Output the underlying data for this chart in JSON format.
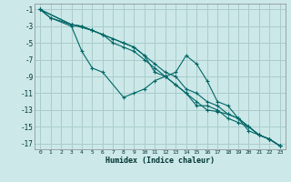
{
  "xlabel": "Humidex (Indice chaleur)",
  "xlim": [
    -0.5,
    23.5
  ],
  "ylim": [
    -17.7,
    -0.3
  ],
  "yticks": [
    -1,
    -3,
    -5,
    -7,
    -9,
    -11,
    -13,
    -15,
    -17
  ],
  "xticks": [
    0,
    1,
    2,
    3,
    4,
    5,
    6,
    7,
    8,
    9,
    10,
    11,
    12,
    13,
    14,
    15,
    16,
    17,
    18,
    19,
    20,
    21,
    22,
    23
  ],
  "bg_color": "#cce8e8",
  "grid_color": "#aacccc",
  "line_color": "#006666",
  "series": [
    {
      "x": [
        0,
        1,
        3,
        4,
        5,
        6,
        8,
        9,
        10,
        11,
        12,
        13,
        14,
        15,
        16,
        17,
        18,
        19,
        20,
        21,
        22,
        23
      ],
      "y": [
        -1,
        -2,
        -3,
        -6,
        -8,
        -8.5,
        -11.5,
        -11,
        -10.5,
        -9.5,
        -9,
        -8.5,
        -6.5,
        -7.5,
        -9.5,
        -12,
        -12.5,
        -14,
        -15.5,
        -16,
        -16.5,
        -17.3
      ]
    },
    {
      "x": [
        0,
        1,
        3,
        4,
        5,
        6,
        7,
        8,
        9,
        10,
        11,
        12,
        13,
        14,
        15,
        16,
        17,
        18,
        19,
        20,
        21,
        22,
        23
      ],
      "y": [
        -1,
        -2,
        -2.8,
        -3,
        -3.5,
        -4,
        -5,
        -5.5,
        -6,
        -7,
        -8,
        -9,
        -10,
        -11,
        -12,
        -13,
        -13.2,
        -13.5,
        -14,
        -15,
        -16,
        -16.5,
        -17.3
      ]
    },
    {
      "x": [
        0,
        3,
        4,
        5,
        6,
        8,
        9,
        10,
        11,
        12,
        13,
        14,
        15,
        16,
        17,
        18,
        19,
        20,
        21,
        22,
        23
      ],
      "y": [
        -1,
        -2.8,
        -3,
        -3.5,
        -4,
        -5,
        -5.5,
        -6.5,
        -8.5,
        -9,
        -10,
        -11,
        -12.5,
        -12.5,
        -13,
        -14,
        -14.5,
        -15,
        -16,
        -16.5,
        -17.3
      ]
    },
    {
      "x": [
        0,
        3,
        5,
        6,
        7,
        8,
        9,
        10,
        11,
        12,
        13,
        14,
        15,
        16,
        17,
        18,
        19,
        20,
        21,
        22,
        23
      ],
      "y": [
        -1,
        -2.8,
        -3.5,
        -4,
        -4.5,
        -5,
        -5.5,
        -6.5,
        -7.5,
        -8.5,
        -9,
        -10.5,
        -11,
        -12,
        -12.5,
        -13.5,
        -14,
        -15,
        -16,
        -16.5,
        -17.3
      ]
    }
  ]
}
